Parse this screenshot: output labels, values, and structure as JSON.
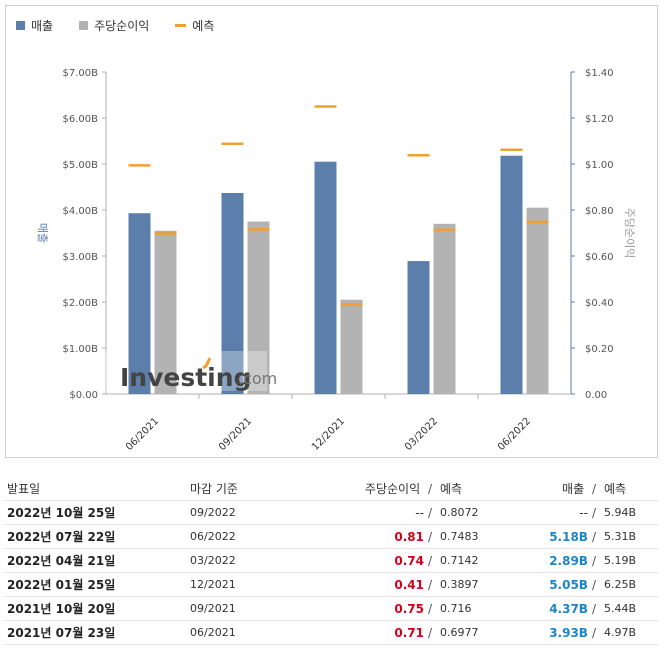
{
  "legend": {
    "revenue_label": "매출",
    "eps_label": "주당순이익",
    "forecast_label": "예측"
  },
  "watermark": {
    "brand": "Investing",
    "suffix": ".com"
  },
  "chart_data": {
    "type": "bar",
    "categories": [
      "06/2021",
      "09/2021",
      "12/2021",
      "03/2022",
      "06/2022"
    ],
    "series": [
      {
        "name": "매출",
        "axis": "left",
        "values": [
          3.93,
          4.37,
          5.05,
          2.89,
          5.18
        ]
      },
      {
        "name": "주당순이익",
        "axis": "right",
        "values": [
          0.71,
          0.75,
          0.41,
          0.74,
          0.81
        ]
      }
    ],
    "forecasts": {
      "revenue": [
        4.97,
        5.44,
        6.25,
        5.19,
        5.31
      ],
      "eps": [
        0.6977,
        0.716,
        0.3897,
        0.7142,
        0.7483
      ]
    },
    "left_ticks": [
      "$0.00",
      "$1.00B",
      "$2.00B",
      "$3.00B",
      "$4.00B",
      "$5.00B",
      "$6.00B",
      "$7.00B"
    ],
    "right_ticks": [
      "0.00",
      "$0.20",
      "$0.40",
      "$0.60",
      "$0.80",
      "$1.00",
      "$1.20",
      "$1.40"
    ],
    "ylim_left": [
      0,
      7
    ],
    "ylim_right": [
      0,
      1.4
    ],
    "ylabel_left": "매출",
    "ylabel_right": "주당순이익",
    "colors": {
      "revenue": "#5b7faa",
      "eps": "#b3b3b3",
      "forecast": "#f0a030"
    },
    "grid": false
  },
  "table": {
    "headers": {
      "date": "발표일",
      "period": "마감 기준",
      "eps": "주당순이익",
      "eps_forecast": "예측",
      "revenue": "매출",
      "revenue_forecast": "예측",
      "sep": "/"
    },
    "rows": [
      {
        "date": "2022년 10월 25일",
        "period": "09/2022",
        "eps": "--",
        "eps_status": "none",
        "eps_forecast": "0.8072",
        "revenue": "--",
        "revenue_status": "none",
        "revenue_forecast": "5.94B"
      },
      {
        "date": "2022년 07월 22일",
        "period": "06/2022",
        "eps": "0.81",
        "eps_status": "miss",
        "eps_forecast": "0.7483",
        "revenue": "5.18B",
        "revenue_status": "beat",
        "revenue_forecast": "5.31B"
      },
      {
        "date": "2022년 04월 21일",
        "period": "03/2022",
        "eps": "0.74",
        "eps_status": "miss",
        "eps_forecast": "0.7142",
        "revenue": "2.89B",
        "revenue_status": "beat",
        "revenue_forecast": "5.19B"
      },
      {
        "date": "2022년 01월 25일",
        "period": "12/2021",
        "eps": "0.41",
        "eps_status": "miss",
        "eps_forecast": "0.3897",
        "revenue": "5.05B",
        "revenue_status": "beat",
        "revenue_forecast": "6.25B"
      },
      {
        "date": "2021년 10월 20일",
        "period": "09/2021",
        "eps": "0.75",
        "eps_status": "miss",
        "eps_forecast": "0.716",
        "revenue": "4.37B",
        "revenue_status": "beat",
        "revenue_forecast": "5.44B"
      },
      {
        "date": "2021년 07월 23일",
        "period": "06/2021",
        "eps": "0.71",
        "eps_status": "miss",
        "eps_forecast": "0.6977",
        "revenue": "3.93B",
        "revenue_status": "beat",
        "revenue_forecast": "4.97B"
      }
    ],
    "status_colors": {
      "miss": "#d0021b",
      "beat": "#1a86c8",
      "none": "#333333"
    }
  }
}
